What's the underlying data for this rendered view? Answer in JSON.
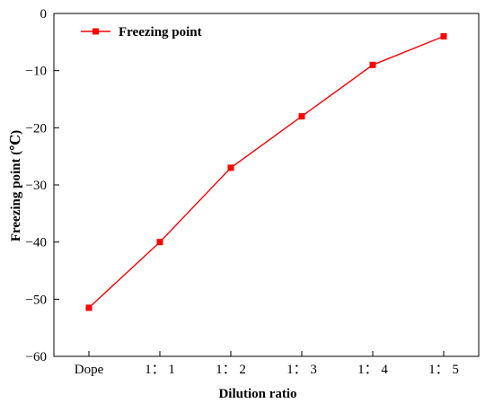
{
  "chart_data": {
    "type": "line",
    "title": "",
    "xlabel": "Dilution ratio",
    "ylabel": "Freezing point (℃)",
    "categories": [
      "Dope",
      "1： 1",
      "1： 2",
      "1： 3",
      "1： 4",
      "1： 5"
    ],
    "series": [
      {
        "name": "Freezing point",
        "values": [
          -51.5,
          -40,
          -27,
          -18,
          -9,
          -4
        ],
        "color": "#ff0000",
        "marker": "square"
      }
    ],
    "ylim": [
      -60,
      0
    ],
    "yticks": [
      0,
      -10,
      -20,
      -30,
      -40,
      -50,
      -60
    ],
    "grid": false,
    "legend_position": "top-left"
  }
}
